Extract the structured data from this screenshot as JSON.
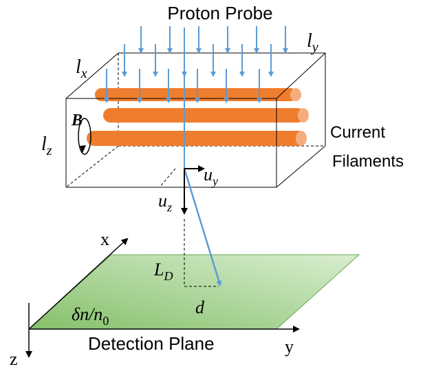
{
  "labels": {
    "proton_probe": "Proton Probe",
    "current_filaments_line1": "Current",
    "current_filaments_line2": "Filaments",
    "detection_plane": "Detection Plane",
    "lx_base": "l",
    "lx_sub": "x",
    "ly_base": "l",
    "ly_sub": "y",
    "lz_base": "l",
    "lz_sub": "z",
    "B": "B",
    "uy_base": "u",
    "uy_sub": "y",
    "uz_base": "u",
    "uz_sub": "z",
    "LD_base": "L",
    "LD_sub": "D",
    "d": "d",
    "density_pre": "δn/n",
    "density_sub": "0",
    "axis_x": "x",
    "axis_y": "y",
    "axis_z": "z"
  },
  "colors": {
    "filament": "#ef7d2e",
    "filament_end": "#f6ad7e",
    "probe_arrow": "#5b9bd5",
    "plane_fill_light": "#cfe7c2",
    "plane_fill_dark": "#86c06b",
    "plane_edge": "#6aa84f",
    "line": "#000000"
  }
}
